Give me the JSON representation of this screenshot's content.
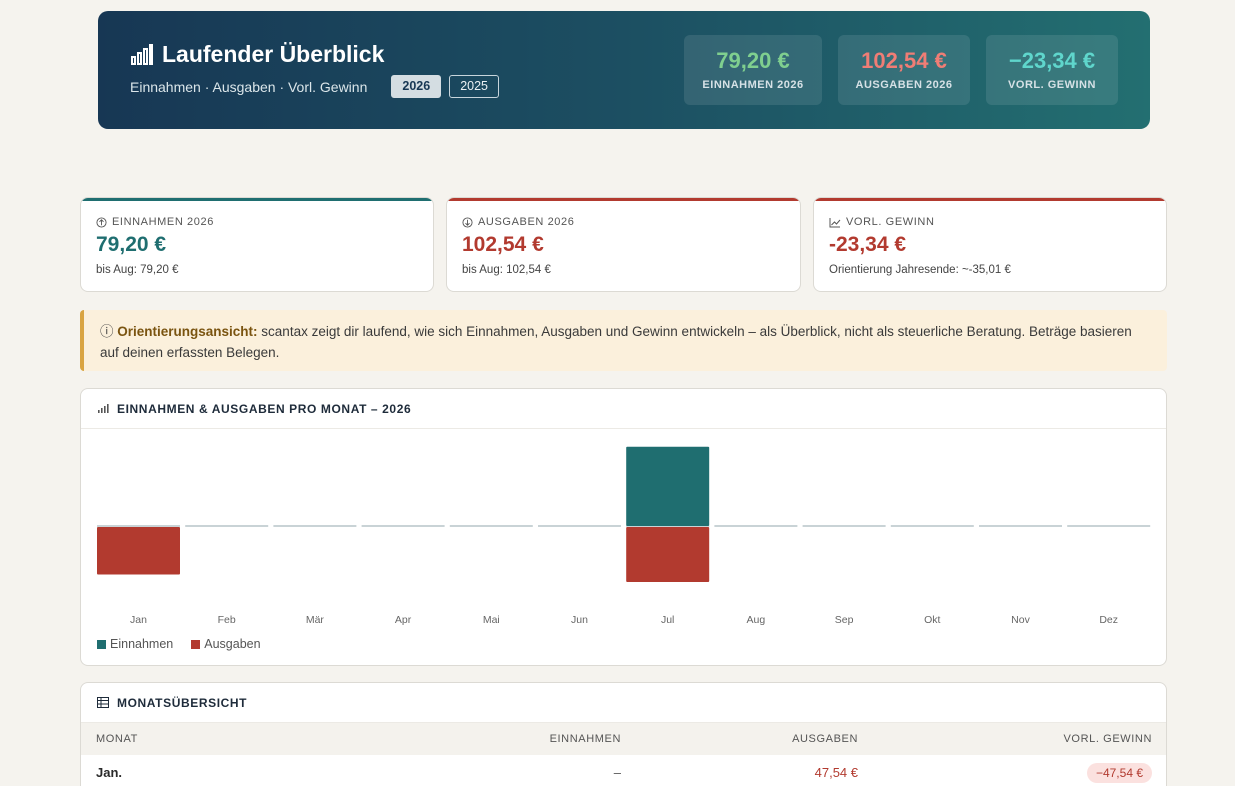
{
  "header": {
    "title": "Laufender Überblick",
    "subtitle": "Einnahmen · Ausgaben · Vorl. Gewinn",
    "years": [
      "2026",
      "2025"
    ],
    "kpis": [
      {
        "value": "79,20 €",
        "label": "EINNAHMEN 2026",
        "color": "#7fcf8f"
      },
      {
        "value": "102,54 €",
        "label": "AUSGABEN 2026",
        "color": "#f07d75"
      },
      {
        "value": "−23,34 €",
        "label": "VORL. GEWINN",
        "color": "#5fd6cc"
      }
    ]
  },
  "cards": [
    {
      "label": "EINNAHMEN 2026",
      "value": "79,20 €",
      "sub": "bis Aug: 79,20 €",
      "color": "#1f6e70",
      "icon": "arrow-up-circle-icon"
    },
    {
      "label": "AUSGABEN 2026",
      "value": "102,54 €",
      "sub": "bis Aug: 102,54 €",
      "color": "#b23a2f",
      "icon": "arrow-down-circle-icon"
    },
    {
      "label": "VORL. GEWINN",
      "value": "-23,34 €",
      "sub": "Orientierung Jahresende: ~-35,01 €",
      "color": "#b23a2f",
      "icon": "trend-chart-icon"
    }
  ],
  "notice": {
    "bold": "Orientierungsansicht:",
    "text": " scantax zeigt dir laufend, wie sich Einnahmen, Ausgaben und Gewinn entwickeln – als Überblick, nicht als steuerliche Beratung. Beträge basieren auf deinen erfassten Belegen."
  },
  "chart_panel": {
    "title": "EINNAHMEN & AUSGABEN PRO MONAT – 2026"
  },
  "chart_data": {
    "type": "bar",
    "categories": [
      "Jan",
      "Feb",
      "Mär",
      "Apr",
      "Mai",
      "Jun",
      "Jul",
      "Aug",
      "Sep",
      "Okt",
      "Nov",
      "Dez"
    ],
    "series": [
      {
        "name": "Einnahmen",
        "values": [
          0,
          0,
          0,
          0,
          0,
          0,
          79.2,
          0,
          0,
          0,
          0,
          0
        ],
        "color": "#1f6e70"
      },
      {
        "name": "Ausgaben",
        "values": [
          47.54,
          0,
          0,
          0,
          0,
          0,
          55.0,
          0,
          0,
          0,
          0,
          0
        ],
        "color": "#b23a2f"
      }
    ],
    "legend": "bottom-left",
    "ylim": [
      -80,
      80
    ]
  },
  "table": {
    "title": "MONATSÜBERSICHT",
    "columns": [
      "MONAT",
      "EINNAHMEN",
      "AUSGABEN",
      "VORL. GEWINN"
    ],
    "rows": [
      {
        "month": "Jan.",
        "income": "–",
        "expense": "47,54 €",
        "profit": "−47,54 €"
      }
    ]
  }
}
